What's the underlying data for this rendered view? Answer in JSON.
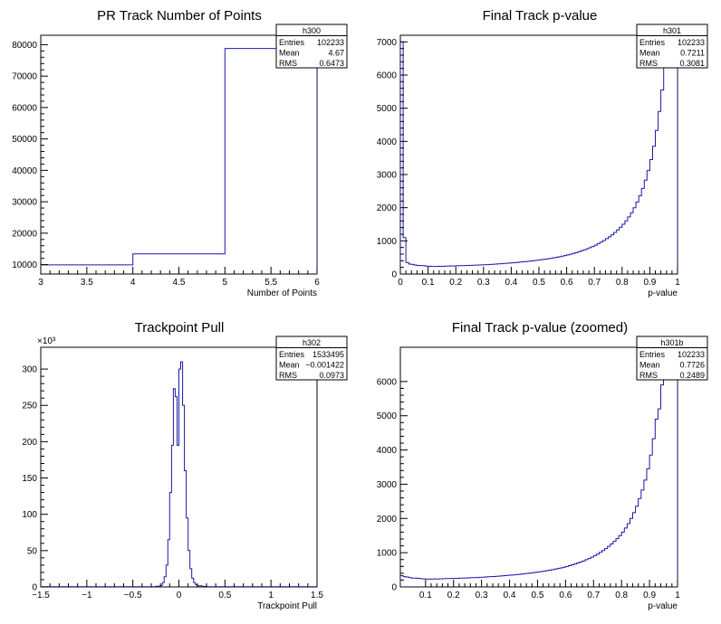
{
  "chart_data": [
    {
      "type": "histogram",
      "title": "PR Track Number of Points",
      "xlabel": "Number of Points",
      "ylabel": "",
      "xlim": [
        3,
        6
      ],
      "ylim": [
        7000,
        83000
      ],
      "xticks": [
        3,
        3.5,
        4,
        4.5,
        5,
        5.5,
        6
      ],
      "xtick_labels": [
        "3",
        "3.5",
        "4",
        "4.5",
        "5",
        "5.5",
        "6"
      ],
      "yticks": [
        10000,
        20000,
        30000,
        40000,
        50000,
        60000,
        70000,
        80000
      ],
      "ytick_labels": [
        "10000",
        "20000",
        "30000",
        "40000",
        "50000",
        "60000",
        "70000",
        "80000"
      ],
      "bins": [
        [
          3,
          4,
          9900
        ],
        [
          4,
          5,
          13400
        ],
        [
          5,
          6,
          78800
        ]
      ],
      "stats": {
        "name": "h300",
        "rows": [
          [
            "Entries",
            "102233"
          ],
          [
            "Mean",
            "4.67"
          ],
          [
            "RMS",
            "0.6473"
          ]
        ]
      }
    },
    {
      "type": "histogram",
      "title": "Final Track p-value",
      "xlabel": "p-value",
      "ylabel": "",
      "xlim": [
        0,
        1
      ],
      "ylim": [
        0,
        7200
      ],
      "xticks": [
        0,
        0.1,
        0.2,
        0.3,
        0.4,
        0.5,
        0.6,
        0.7,
        0.8,
        0.9,
        1
      ],
      "xtick_labels": [
        "0",
        "0.1",
        "0.2",
        "0.3",
        "0.4",
        "0.5",
        "0.6",
        "0.7",
        "0.8",
        "0.9",
        "1"
      ],
      "yticks": [
        0,
        1000,
        2000,
        3000,
        4000,
        5000,
        6000,
        7000
      ],
      "ytick_labels": [
        "0",
        "1000",
        "2000",
        "3000",
        "4000",
        "5000",
        "6000",
        "7000"
      ],
      "bin_width": 0.01,
      "values": [
        7000,
        1100,
        350,
        300,
        290,
        270,
        260,
        255,
        250,
        240,
        235,
        230,
        228,
        232,
        235,
        230,
        238,
        240,
        245,
        242,
        248,
        250,
        252,
        255,
        258,
        262,
        265,
        270,
        272,
        275,
        280,
        285,
        290,
        295,
        300,
        305,
        310,
        318,
        325,
        330,
        338,
        345,
        352,
        360,
        368,
        375,
        385,
        395,
        405,
        415,
        425,
        438,
        450,
        462,
        475,
        490,
        505,
        520,
        538,
        555,
        575,
        598,
        620,
        645,
        670,
        700,
        730,
        760,
        795,
        830,
        870,
        915,
        960,
        1010,
        1065,
        1120,
        1185,
        1255,
        1330,
        1410,
        1500,
        1600,
        1720,
        1850,
        2000,
        2170,
        2360,
        2580,
        2830,
        3120,
        3450,
        3850,
        4330,
        4900,
        5550,
        6300,
        7200,
        7200,
        7200,
        6800
      ],
      "stats": {
        "name": "h301",
        "rows": [
          [
            "Entries",
            "102233"
          ],
          [
            "Mean",
            "0.7211"
          ],
          [
            "RMS",
            "0.3081"
          ]
        ]
      }
    },
    {
      "type": "histogram",
      "title": "Trackpoint Pull",
      "xlabel": "Trackpoint Pull",
      "ylabel": "",
      "y_multiplier": "×10³",
      "xlim": [
        -1.5,
        1.5
      ],
      "ylim": [
        0,
        330
      ],
      "xticks": [
        -1.5,
        -1,
        -0.5,
        0,
        0.5,
        1,
        1.5
      ],
      "xtick_labels": [
        "−1.5",
        "−1",
        "−0.5",
        "0",
        "0.5",
        "1",
        "1.5"
      ],
      "yticks": [
        0,
        50,
        100,
        150,
        200,
        250,
        300
      ],
      "ytick_labels": [
        "0",
        "50",
        "100",
        "150",
        "200",
        "250",
        "300"
      ],
      "bins": [
        [
          -1.5,
          -0.25,
          0.3
        ],
        [
          -0.25,
          -0.2,
          1
        ],
        [
          -0.2,
          -0.18,
          2
        ],
        [
          -0.18,
          -0.16,
          6
        ],
        [
          -0.16,
          -0.14,
          14
        ],
        [
          -0.14,
          -0.12,
          30
        ],
        [
          -0.12,
          -0.1,
          65
        ],
        [
          -0.1,
          -0.08,
          130
        ],
        [
          -0.08,
          -0.06,
          195
        ],
        [
          -0.06,
          -0.04,
          273
        ],
        [
          -0.04,
          -0.02,
          262
        ],
        [
          -0.02,
          0.0,
          195
        ],
        [
          0.0,
          0.02,
          300
        ],
        [
          0.02,
          0.04,
          310
        ],
        [
          0.04,
          0.06,
          250
        ],
        [
          0.06,
          0.08,
          160
        ],
        [
          0.08,
          0.1,
          95
        ],
        [
          0.1,
          0.12,
          50
        ],
        [
          0.12,
          0.14,
          25
        ],
        [
          0.14,
          0.16,
          12
        ],
        [
          0.16,
          0.18,
          6
        ],
        [
          0.18,
          0.2,
          3
        ],
        [
          0.2,
          0.25,
          1.5
        ],
        [
          0.25,
          0.3,
          0.8
        ],
        [
          0.3,
          1.5,
          0.3
        ]
      ],
      "stats": {
        "name": "h302",
        "rows": [
          [
            "Entries",
            "1533495"
          ],
          [
            "Mean",
            "−0.001422"
          ],
          [
            "RMS",
            "0.0973"
          ]
        ]
      }
    },
    {
      "type": "histogram",
      "title": "Final Track p-value (zoomed)",
      "xlabel": "p-value",
      "ylabel": "",
      "xlim": [
        0.01,
        1
      ],
      "ylim": [
        0,
        7000
      ],
      "xticks": [
        0.1,
        0.2,
        0.3,
        0.4,
        0.5,
        0.6,
        0.7,
        0.8,
        0.9,
        1
      ],
      "xtick_labels": [
        "0.1",
        "0.2",
        "0.3",
        "0.4",
        "0.5",
        "0.6",
        "0.7",
        "0.8",
        "0.9",
        "1"
      ],
      "yticks": [
        0,
        1000,
        2000,
        3000,
        4000,
        5000,
        6000
      ],
      "ytick_labels": [
        "0",
        "1000",
        "2000",
        "3000",
        "4000",
        "5000",
        "6000"
      ],
      "bin_width": 0.01,
      "values": [
        330,
        300,
        290,
        270,
        260,
        255,
        250,
        240,
        235,
        230,
        228,
        232,
        235,
        230,
        238,
        240,
        245,
        242,
        248,
        250,
        252,
        255,
        258,
        262,
        265,
        270,
        272,
        275,
        280,
        285,
        290,
        295,
        300,
        305,
        310,
        318,
        325,
        330,
        338,
        345,
        352,
        360,
        368,
        375,
        385,
        395,
        405,
        415,
        425,
        438,
        450,
        462,
        475,
        490,
        505,
        520,
        538,
        555,
        575,
        598,
        620,
        645,
        670,
        700,
        730,
        760,
        795,
        830,
        870,
        915,
        960,
        1010,
        1065,
        1120,
        1185,
        1255,
        1330,
        1410,
        1500,
        1600,
        1720,
        1850,
        2000,
        2170,
        2360,
        2580,
        2830,
        3120,
        3450,
        3850,
        4330,
        4900,
        5200,
        5900,
        7000,
        7000,
        7000,
        6900,
        6800
      ],
      "stats": {
        "name": "h301b",
        "rows": [
          [
            "Entries",
            "102233"
          ],
          [
            "Mean",
            "0.7726"
          ],
          [
            "RMS",
            "0.2489"
          ]
        ]
      }
    }
  ]
}
